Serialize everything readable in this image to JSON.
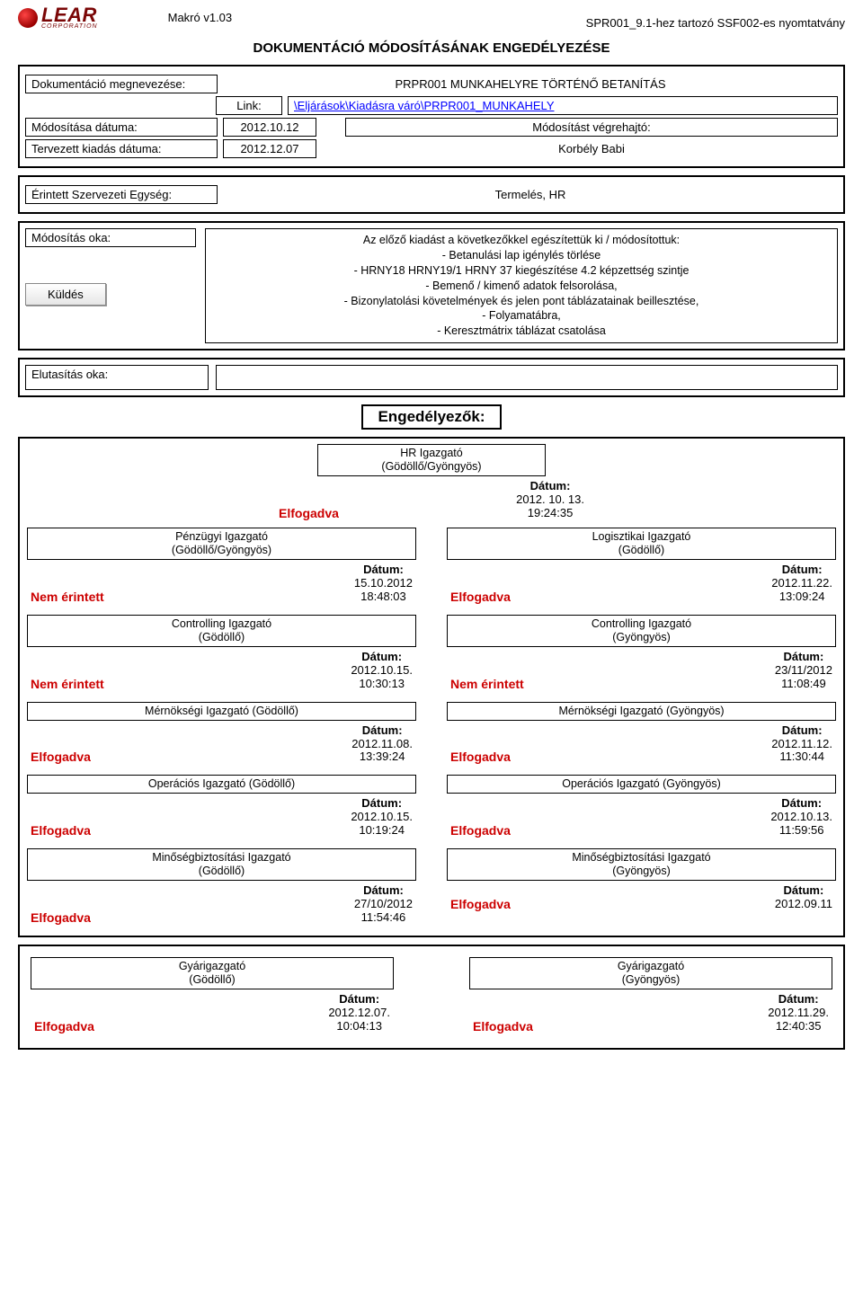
{
  "meta": {
    "version": "Makró v1.03",
    "form_ref": "SPR001_9.1-hez tartozó SSF002-es nyomtatvány",
    "logo_text": "LEAR",
    "logo_sub": "CORPORATION"
  },
  "title": "DOKUMENTÁCIÓ MÓDOSÍTÁSÁNAK ENGEDÉLYEZÉSE",
  "header": {
    "doc_name_label": "Dokumentáció megnevezése:",
    "doc_name_value": "PRPR001 MUNKAHELYRE TÖRTÉNŐ BETANÍTÁS",
    "link_label": "Link:",
    "link_value": "\\Eljárások\\Kiadásra váró\\PRPR001_MUNKAHELY",
    "mod_date_label": "Módosítása dátuma:",
    "mod_date_value": "2012.10.12",
    "mod_exec_label": "Módosítást végrehajtó:",
    "rel_date_label": "Tervezett kiadás dátuma:",
    "rel_date_value": "2012.12.07",
    "executor": "Korbély Babi",
    "unit_label": "Érintett Szervezeti Egység:",
    "unit_value": "Termelés, HR",
    "reason_label": "Módosítás oka:",
    "send_btn": "Küldés",
    "reason_text": "Az előző kiadást a következőkkel egészítettük ki / módosítottuk:\n- Betanulási lap igénylés törlése\n- HRNY18 HRNY19/1 HRNY 37 kiegészítése 4.2 képzettség szintje\n- Bemenő / kimenő adatok felsorolása,\n- Bizonylatolási követelmények és jelen pont táblázatainak beillesztése,\n- Folyamatábra,\n- Keresztmátrix táblázat csatolása",
    "rejection_label": "Elutasítás oka:"
  },
  "approvers_title": "Engedélyezők:",
  "labels": {
    "date": "Dátum:"
  },
  "status_text": {
    "accepted": "Elfogadva",
    "not_affected": "Nem érintett"
  },
  "hr_top": {
    "role": "HR Igazgató",
    "loc": "(Gödöllő/Gyöngyös)",
    "status": "accepted",
    "date1": "2012. 10. 13.",
    "date2": "19:24:35"
  },
  "rows": [
    {
      "left": {
        "role": "Pénzügyi Igazgató",
        "loc": "(Gödöllő/Gyöngyös)",
        "status": "not_affected",
        "date1": "15.10.2012",
        "date2": "18:48:03"
      },
      "right": {
        "role": "Logisztikai  Igazgató",
        "loc": "(Gödöllő)",
        "status": "accepted",
        "date1": "2012.11.22.",
        "date2": "13:09:24"
      }
    },
    {
      "left": {
        "role": "Controlling Igazgató",
        "loc": "(Gödöllő)",
        "status": "not_affected",
        "date1": "2012.10.15.",
        "date2": "10:30:13"
      },
      "right": {
        "role": "Controlling Igazgató",
        "loc": "(Gyöngyös)",
        "status": "not_affected",
        "date1": "23/11/2012",
        "date2": "11:08:49"
      }
    },
    {
      "left": {
        "role": "Mérnökségi Igazgató (Gödöllő)",
        "loc": "",
        "status": "accepted",
        "date1": "2012.11.08.",
        "date2": "13:39:24"
      },
      "right": {
        "role": "Mérnökségi Igazgató (Gyöngyös)",
        "loc": "",
        "status": "accepted",
        "date1": "2012.11.12.",
        "date2": "11:30:44"
      }
    },
    {
      "left": {
        "role": "Operációs Igazgató (Gödöllő)",
        "loc": "",
        "status": "accepted",
        "date1": "2012.10.15.",
        "date2": "10:19:24"
      },
      "right": {
        "role": "Operációs Igazgató (Gyöngyös)",
        "loc": "",
        "status": "accepted",
        "date1": "2012.10.13.",
        "date2": "11:59:56"
      }
    },
    {
      "left": {
        "role": "Minőségbiztosítási Igazgató",
        "loc": "(Gödöllő)",
        "status": "accepted",
        "date1": "27/10/2012",
        "date2": "11:54:46"
      },
      "right": {
        "role": "Minőségbiztosítási Igazgató",
        "loc": "(Gyöngyös)",
        "status": "accepted",
        "date1": "2012.09.11",
        "date2": ""
      }
    }
  ],
  "bottom": {
    "left": {
      "role": "Gyárigazgató",
      "loc": "(Gödöllő)",
      "status": "accepted",
      "date1": "2012.12.07.",
      "date2": "10:04:13"
    },
    "right": {
      "role": "Gyárigazgató",
      "loc": "(Gyöngyös)",
      "status": "accepted",
      "date1": "2012.11.29.",
      "date2": "12:40:35"
    }
  },
  "colors": {
    "status": "#cc0000",
    "link": "#0000ff",
    "logo": "#7a0606"
  }
}
